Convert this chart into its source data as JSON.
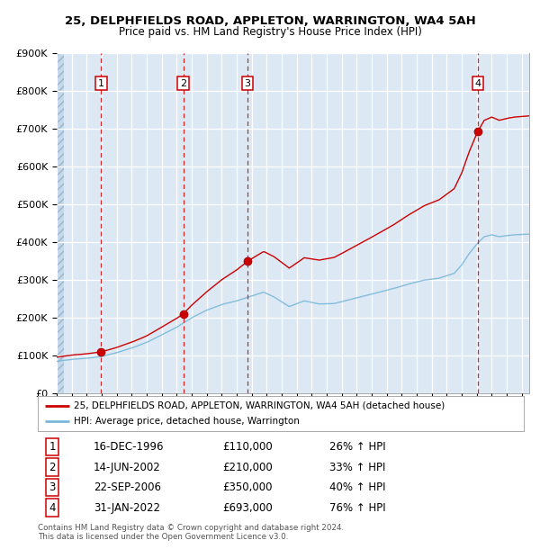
{
  "title1": "25, DELPHFIELDS ROAD, APPLETON, WARRINGTON, WA4 5AH",
  "title2": "Price paid vs. HM Land Registry's House Price Index (HPI)",
  "ylim": [
    0,
    900000
  ],
  "xlim_start": 1994.0,
  "xlim_end": 2025.5,
  "bg_color": "#dce9f5",
  "grid_color": "#ffffff",
  "sale_color": "#cc0000",
  "hpi_color": "#7ab8d9",
  "sale_label": "25, DELPHFIELDS ROAD, APPLETON, WARRINGTON, WA4 5AH (detached house)",
  "hpi_label": "HPI: Average price, detached house, Warrington",
  "sales": [
    {
      "num": 1,
      "date_dec": 1996.96,
      "price": 110000,
      "label": "16-DEC-1996",
      "pct": "26%"
    },
    {
      "num": 2,
      "date_dec": 2002.45,
      "price": 210000,
      "label": "14-JUN-2002",
      "pct": "33%"
    },
    {
      "num": 3,
      "date_dec": 2006.72,
      "price": 350000,
      "label": "22-SEP-2006",
      "pct": "40%"
    },
    {
      "num": 4,
      "date_dec": 2022.08,
      "price": 693000,
      "label": "31-JAN-2022",
      "pct": "76%"
    }
  ],
  "table_rows": [
    [
      "1",
      "16-DEC-1996",
      "£110,000",
      "26% ↑ HPI"
    ],
    [
      "2",
      "14-JUN-2002",
      "£210,000",
      "33% ↑ HPI"
    ],
    [
      "3",
      "22-SEP-2006",
      "£350,000",
      "40% ↑ HPI"
    ],
    [
      "4",
      "31-JAN-2022",
      "£693,000",
      "76% ↑ HPI"
    ]
  ],
  "footer": "Contains HM Land Registry data © Crown copyright and database right 2024.\nThis data is licensed under the Open Government Licence v3.0.",
  "yticks": [
    0,
    100000,
    200000,
    300000,
    400000,
    500000,
    600000,
    700000,
    800000,
    900000
  ],
  "ytick_labels": [
    "£0",
    "£100K",
    "£200K",
    "£300K",
    "£400K",
    "£500K",
    "£600K",
    "£700K",
    "£800K",
    "£900K"
  ]
}
